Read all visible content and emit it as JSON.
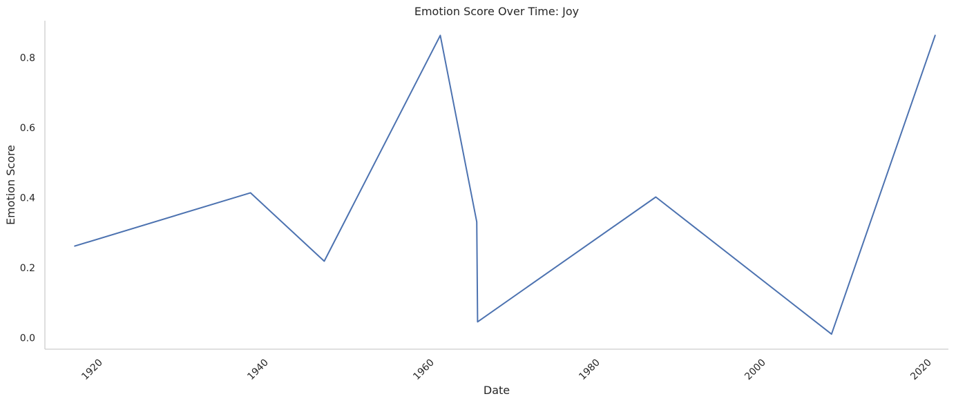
{
  "chart_data": {
    "type": "line",
    "title": "Emotion Score Over Time: Joy",
    "xlabel": "Date",
    "ylabel": "Emotion Score",
    "xlim": [
      1913.5,
      2022.5
    ],
    "ylim": [
      -0.032,
      0.905
    ],
    "x_ticks": [
      1920,
      1940,
      1960,
      1980,
      2000,
      2020
    ],
    "y_ticks": [
      0.0,
      0.2,
      0.4,
      0.6,
      0.8
    ],
    "y_tick_labels": [
      "0.0",
      "0.2",
      "0.4",
      "0.6",
      "0.8"
    ],
    "grid": false,
    "series": [
      {
        "color": "#4c72b0",
        "x": [
          1917.1,
          1938.3,
          1947.2,
          1961.2,
          1965.6,
          1965.7,
          1987.2,
          2008.4,
          2020.9
        ],
        "y": [
          0.262,
          0.414,
          0.219,
          0.863,
          0.331,
          0.046,
          0.402,
          0.011,
          0.863
        ]
      }
    ]
  }
}
